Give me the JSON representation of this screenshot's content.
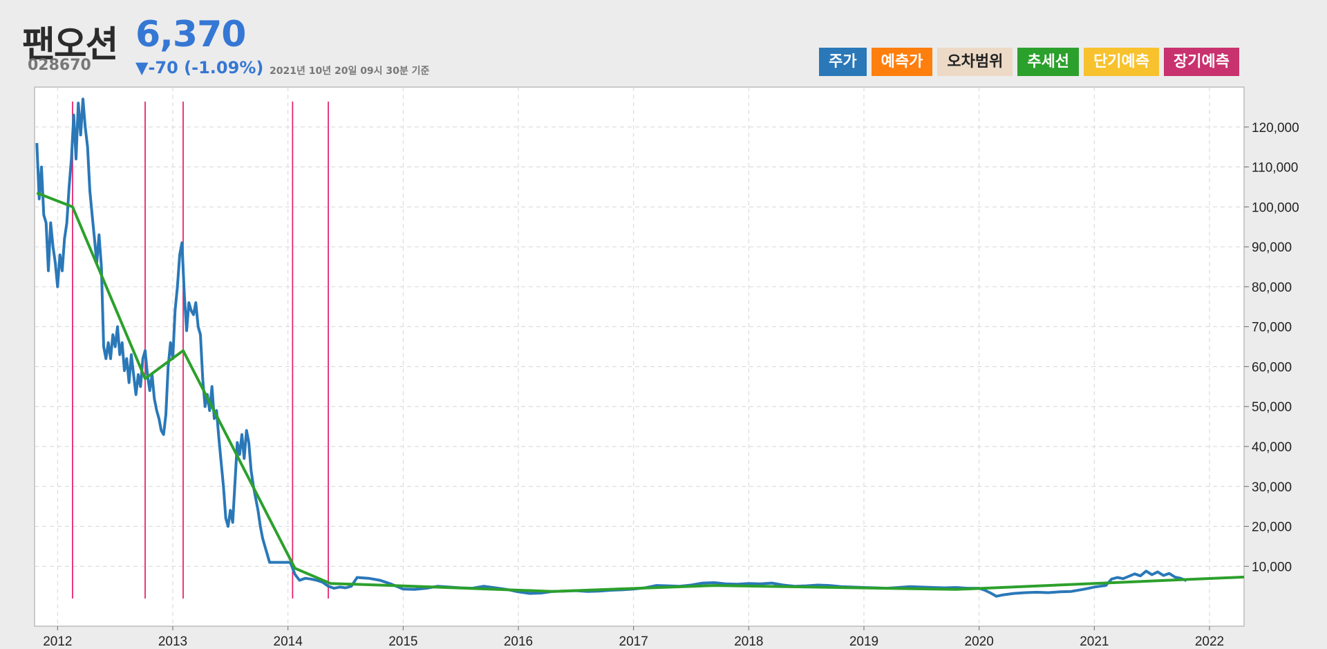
{
  "header": {
    "name": "팬오션",
    "price": "6,370",
    "code": "028670",
    "change": "▼-70 (-1.09%)",
    "timestamp": "2021년 10년 20일 09시 30분 기준",
    "price_color": "#3577d4"
  },
  "legend": [
    {
      "label": "주가",
      "color": "#2a78b8",
      "text_color": "#ffffff"
    },
    {
      "label": "예측가",
      "color": "#ff7f0e",
      "text_color": "#ffffff"
    },
    {
      "label": "오차범위",
      "color": "#ecd9c6",
      "text_color": "#222222"
    },
    {
      "label": "추세선",
      "color": "#2ca02c",
      "text_color": "#ffffff"
    },
    {
      "label": "단기예측",
      "color": "#f7c22d",
      "text_color": "#ffffff"
    },
    {
      "label": "장기예측",
      "color": "#c8326e",
      "text_color": "#ffffff"
    }
  ],
  "chart_data": {
    "type": "line",
    "xlim": [
      2011.8,
      2022.3
    ],
    "ylim": [
      -5000,
      130000
    ],
    "y_ticks": [
      10000,
      20000,
      30000,
      40000,
      50000,
      60000,
      70000,
      80000,
      90000,
      100000,
      110000,
      120000
    ],
    "y_tick_labels": [
      "10,000",
      "20,000",
      "30,000",
      "40,000",
      "50,000",
      "60,000",
      "70,000",
      "80,000",
      "90,000",
      "100,000",
      "110,000",
      "120,000"
    ],
    "x_ticks": [
      2012,
      2013,
      2014,
      2015,
      2016,
      2017,
      2018,
      2019,
      2020,
      2021,
      2022
    ],
    "x_tick_labels": [
      "2012",
      "2013",
      "2014",
      "2015",
      "2016",
      "2017",
      "2018",
      "2019",
      "2020",
      "2021",
      "2022"
    ],
    "grid": true,
    "y_axis_side": "right",
    "series": [
      {
        "name": "주가",
        "color": "#2a78b8",
        "points": [
          [
            2011.82,
            116000
          ],
          [
            2011.84,
            102000
          ],
          [
            2011.86,
            110000
          ],
          [
            2011.88,
            98000
          ],
          [
            2011.9,
            96000
          ],
          [
            2011.92,
            84000
          ],
          [
            2011.94,
            96000
          ],
          [
            2011.96,
            90000
          ],
          [
            2011.98,
            86000
          ],
          [
            2012.0,
            80000
          ],
          [
            2012.02,
            88000
          ],
          [
            2012.04,
            84000
          ],
          [
            2012.06,
            92000
          ],
          [
            2012.08,
            96000
          ],
          [
            2012.1,
            105000
          ],
          [
            2012.12,
            112000
          ],
          [
            2012.14,
            123000
          ],
          [
            2012.16,
            112000
          ],
          [
            2012.18,
            126000
          ],
          [
            2012.2,
            118000
          ],
          [
            2012.22,
            127000
          ],
          [
            2012.24,
            120000
          ],
          [
            2012.26,
            115000
          ],
          [
            2012.28,
            104000
          ],
          [
            2012.3,
            98000
          ],
          [
            2012.32,
            92000
          ],
          [
            2012.34,
            86000
          ],
          [
            2012.36,
            93000
          ],
          [
            2012.38,
            85000
          ],
          [
            2012.4,
            65000
          ],
          [
            2012.42,
            62000
          ],
          [
            2012.44,
            66000
          ],
          [
            2012.46,
            62000
          ],
          [
            2012.48,
            68000
          ],
          [
            2012.5,
            65000
          ],
          [
            2012.52,
            70000
          ],
          [
            2012.54,
            63000
          ],
          [
            2012.56,
            66000
          ],
          [
            2012.58,
            59000
          ],
          [
            2012.6,
            62000
          ],
          [
            2012.62,
            56000
          ],
          [
            2012.64,
            63000
          ],
          [
            2012.66,
            58000
          ],
          [
            2012.68,
            53000
          ],
          [
            2012.7,
            58000
          ],
          [
            2012.72,
            55000
          ],
          [
            2012.74,
            62000
          ],
          [
            2012.76,
            64000
          ],
          [
            2012.78,
            58000
          ],
          [
            2012.8,
            54000
          ],
          [
            2012.82,
            58000
          ],
          [
            2012.84,
            52000
          ],
          [
            2012.86,
            49000
          ],
          [
            2012.88,
            47000
          ],
          [
            2012.9,
            44000
          ],
          [
            2012.92,
            43000
          ],
          [
            2012.94,
            48000
          ],
          [
            2012.96,
            60000
          ],
          [
            2012.98,
            66000
          ],
          [
            2013.0,
            62000
          ],
          [
            2013.02,
            74000
          ],
          [
            2013.04,
            80000
          ],
          [
            2013.06,
            88000
          ],
          [
            2013.08,
            91000
          ],
          [
            2013.1,
            78000
          ],
          [
            2013.12,
            69000
          ],
          [
            2013.14,
            76000
          ],
          [
            2013.16,
            74000
          ],
          [
            2013.18,
            73000
          ],
          [
            2013.2,
            76000
          ],
          [
            2013.22,
            70000
          ],
          [
            2013.24,
            68000
          ],
          [
            2013.26,
            57000
          ],
          [
            2013.28,
            50000
          ],
          [
            2013.3,
            53000
          ],
          [
            2013.32,
            49000
          ],
          [
            2013.34,
            55000
          ],
          [
            2013.36,
            47000
          ],
          [
            2013.38,
            49000
          ],
          [
            2013.4,
            42000
          ],
          [
            2013.42,
            36000
          ],
          [
            2013.44,
            30000
          ],
          [
            2013.46,
            22000
          ],
          [
            2013.48,
            20000
          ],
          [
            2013.5,
            24000
          ],
          [
            2013.52,
            21000
          ],
          [
            2013.54,
            31000
          ],
          [
            2013.56,
            41000
          ],
          [
            2013.58,
            38000
          ],
          [
            2013.6,
            43000
          ],
          [
            2013.62,
            37000
          ],
          [
            2013.64,
            44000
          ],
          [
            2013.66,
            41000
          ],
          [
            2013.68,
            34000
          ],
          [
            2013.7,
            30000
          ],
          [
            2013.72,
            27000
          ],
          [
            2013.74,
            24000
          ],
          [
            2013.76,
            20000
          ],
          [
            2013.78,
            17000
          ],
          [
            2013.8,
            15000
          ],
          [
            2013.82,
            13000
          ],
          [
            2013.84,
            11000
          ],
          [
            2013.9,
            11000
          ],
          [
            2013.96,
            11000
          ],
          [
            2014.02,
            11000
          ],
          [
            2014.06,
            8000
          ],
          [
            2014.1,
            6500
          ],
          [
            2014.15,
            7000
          ],
          [
            2014.2,
            6800
          ],
          [
            2014.25,
            6500
          ],
          [
            2014.3,
            6000
          ],
          [
            2014.35,
            5000
          ],
          [
            2014.4,
            4500
          ],
          [
            2014.45,
            4800
          ],
          [
            2014.5,
            4600
          ],
          [
            2014.55,
            5000
          ],
          [
            2014.6,
            7200
          ],
          [
            2014.7,
            7000
          ],
          [
            2014.8,
            6500
          ],
          [
            2014.9,
            5500
          ],
          [
            2015.0,
            4300
          ],
          [
            2015.1,
            4200
          ],
          [
            2015.2,
            4500
          ],
          [
            2015.3,
            5000
          ],
          [
            2015.4,
            4800
          ],
          [
            2015.5,
            4600
          ],
          [
            2015.6,
            4500
          ],
          [
            2015.7,
            5000
          ],
          [
            2015.8,
            4600
          ],
          [
            2015.9,
            4200
          ],
          [
            2016.0,
            3600
          ],
          [
            2016.1,
            3200
          ],
          [
            2016.2,
            3300
          ],
          [
            2016.3,
            3700
          ],
          [
            2016.4,
            3800
          ],
          [
            2016.5,
            3900
          ],
          [
            2016.6,
            3700
          ],
          [
            2016.7,
            3800
          ],
          [
            2016.8,
            4000
          ],
          [
            2016.9,
            4100
          ],
          [
            2017.0,
            4300
          ],
          [
            2017.1,
            4600
          ],
          [
            2017.2,
            5200
          ],
          [
            2017.3,
            5100
          ],
          [
            2017.4,
            5000
          ],
          [
            2017.5,
            5300
          ],
          [
            2017.6,
            5800
          ],
          [
            2017.7,
            5900
          ],
          [
            2017.8,
            5600
          ],
          [
            2017.9,
            5500
          ],
          [
            2018.0,
            5700
          ],
          [
            2018.1,
            5600
          ],
          [
            2018.2,
            5800
          ],
          [
            2018.3,
            5300
          ],
          [
            2018.4,
            5000
          ],
          [
            2018.5,
            5100
          ],
          [
            2018.6,
            5300
          ],
          [
            2018.7,
            5200
          ],
          [
            2018.8,
            4900
          ],
          [
            2018.9,
            4800
          ],
          [
            2019.0,
            4700
          ],
          [
            2019.1,
            4600
          ],
          [
            2019.2,
            4500
          ],
          [
            2019.3,
            4700
          ],
          [
            2019.4,
            4900
          ],
          [
            2019.5,
            4800
          ],
          [
            2019.6,
            4700
          ],
          [
            2019.7,
            4600
          ],
          [
            2019.8,
            4700
          ],
          [
            2019.9,
            4500
          ],
          [
            2020.0,
            4500
          ],
          [
            2020.05,
            4000
          ],
          [
            2020.1,
            3300
          ],
          [
            2020.15,
            2500
          ],
          [
            2020.2,
            2800
          ],
          [
            2020.3,
            3200
          ],
          [
            2020.4,
            3400
          ],
          [
            2020.5,
            3500
          ],
          [
            2020.6,
            3400
          ],
          [
            2020.7,
            3600
          ],
          [
            2020.8,
            3700
          ],
          [
            2020.9,
            4200
          ],
          [
            2021.0,
            4800
          ],
          [
            2021.05,
            5000
          ],
          [
            2021.1,
            5200
          ],
          [
            2021.15,
            6800
          ],
          [
            2021.2,
            7200
          ],
          [
            2021.25,
            6900
          ],
          [
            2021.3,
            7500
          ],
          [
            2021.35,
            8100
          ],
          [
            2021.4,
            7600
          ],
          [
            2021.45,
            8800
          ],
          [
            2021.5,
            7900
          ],
          [
            2021.55,
            8600
          ],
          [
            2021.6,
            7700
          ],
          [
            2021.65,
            8200
          ],
          [
            2021.7,
            7300
          ],
          [
            2021.75,
            7000
          ],
          [
            2021.8,
            6400
          ]
        ]
      },
      {
        "name": "추세선",
        "color": "#2ca02c",
        "points": [
          [
            2011.82,
            103500
          ],
          [
            2012.13,
            100000
          ],
          [
            2012.76,
            57000
          ],
          [
            2013.09,
            64000
          ],
          [
            2014.06,
            9500
          ],
          [
            2014.37,
            5700
          ],
          [
            2014.9,
            5200
          ],
          [
            2016.3,
            3700
          ],
          [
            2017.7,
            5200
          ],
          [
            2019.8,
            4200
          ],
          [
            2022.3,
            7300
          ]
        ]
      }
    ],
    "vertical_markers": {
      "color": "#e8246f",
      "x": [
        2012.13,
        2012.76,
        2013.09,
        2014.04,
        2014.35
      ]
    }
  }
}
